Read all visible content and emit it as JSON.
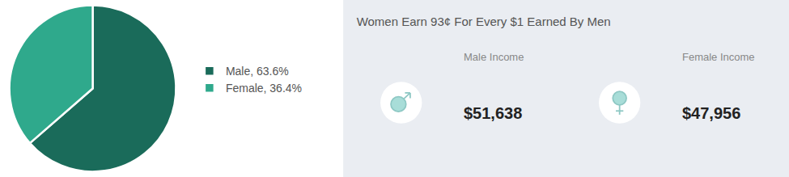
{
  "chart_data": {
    "type": "pie",
    "title": "Women Earn 93¢ For Every $1 Earned By Men",
    "categories": [
      "Male, 63.6%",
      "Female, 36.4%"
    ],
    "values": [
      63.6,
      36.4
    ],
    "colors": [
      "#1a6b5a",
      "#2fa98c"
    ],
    "legend": "right",
    "annotations": [
      "Male Income",
      "$51,638",
      "Female Income",
      "$47,956"
    ]
  }
}
